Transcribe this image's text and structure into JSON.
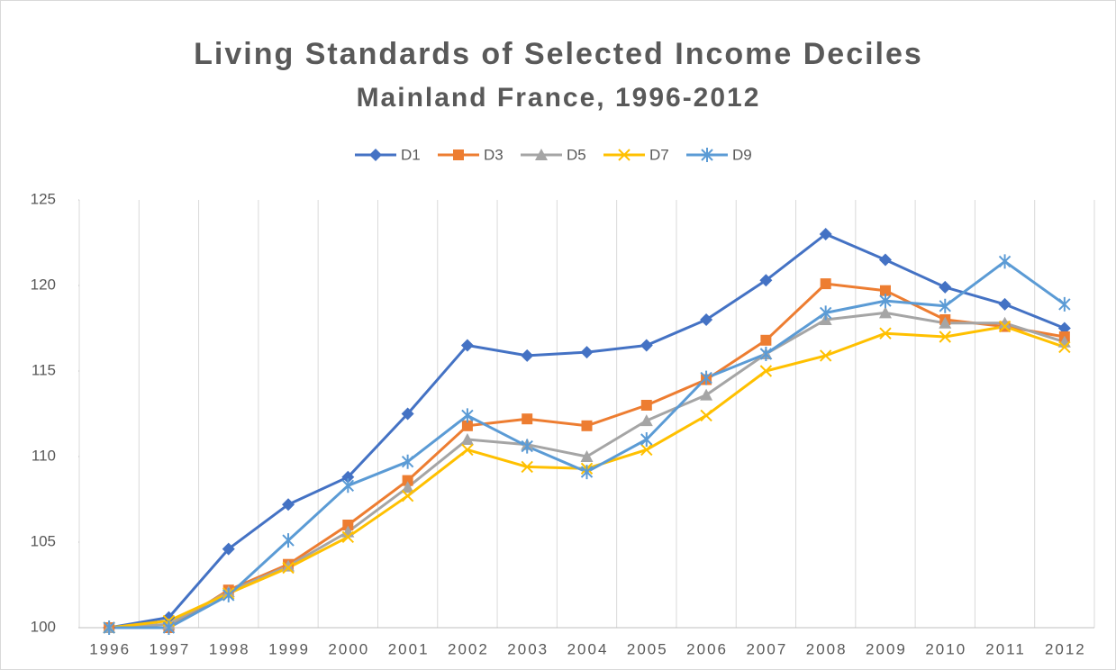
{
  "chart_data": {
    "type": "line",
    "title": "Living Standards of Selected Income Deciles",
    "subtitle": "Mainland France, 1996-2012",
    "categories": [
      "1996",
      "1997",
      "1998",
      "1999",
      "2000",
      "2001",
      "2002",
      "2003",
      "2004",
      "2005",
      "2006",
      "2007",
      "2008",
      "2009",
      "2010",
      "2011",
      "2012"
    ],
    "series": [
      {
        "name": "D1",
        "color": "#4472c4",
        "marker": "diamond",
        "values": [
          100,
          100.6,
          104.6,
          107.2,
          108.8,
          112.5,
          116.5,
          115.9,
          116.1,
          116.5,
          118.0,
          120.3,
          123.0,
          121.5,
          119.9,
          118.9,
          117.5
        ]
      },
      {
        "name": "D3",
        "color": "#ed7d31",
        "marker": "square",
        "values": [
          100,
          100,
          102.2,
          103.7,
          106.0,
          108.6,
          111.8,
          112.2,
          111.8,
          113.0,
          114.5,
          116.8,
          120.1,
          119.7,
          118.0,
          117.6,
          117.0
        ]
      },
      {
        "name": "D5",
        "color": "#a5a5a5",
        "marker": "triangle",
        "values": [
          100,
          100.2,
          102.1,
          103.6,
          105.6,
          108.2,
          111.0,
          110.7,
          110.0,
          112.1,
          113.6,
          116.0,
          118.0,
          118.4,
          117.8,
          117.8,
          116.7
        ]
      },
      {
        "name": "D7",
        "color": "#ffc000",
        "marker": "x",
        "values": [
          100,
          100.4,
          102.0,
          103.5,
          105.3,
          107.7,
          110.4,
          109.4,
          109.3,
          110.4,
          112.4,
          115.0,
          115.9,
          117.2,
          117.0,
          117.6,
          116.4
        ]
      },
      {
        "name": "D9",
        "color": "#5b9bd5",
        "marker": "asterisk",
        "values": [
          100,
          100,
          101.9,
          105.1,
          108.3,
          109.7,
          112.4,
          110.6,
          109.1,
          111.0,
          114.6,
          116.0,
          118.4,
          119.1,
          118.8,
          121.4,
          118.9
        ]
      }
    ],
    "ylim": [
      100,
      125
    ],
    "yticks": [
      100,
      105,
      110,
      115,
      120,
      125
    ],
    "grid": "x",
    "legend": "top"
  }
}
